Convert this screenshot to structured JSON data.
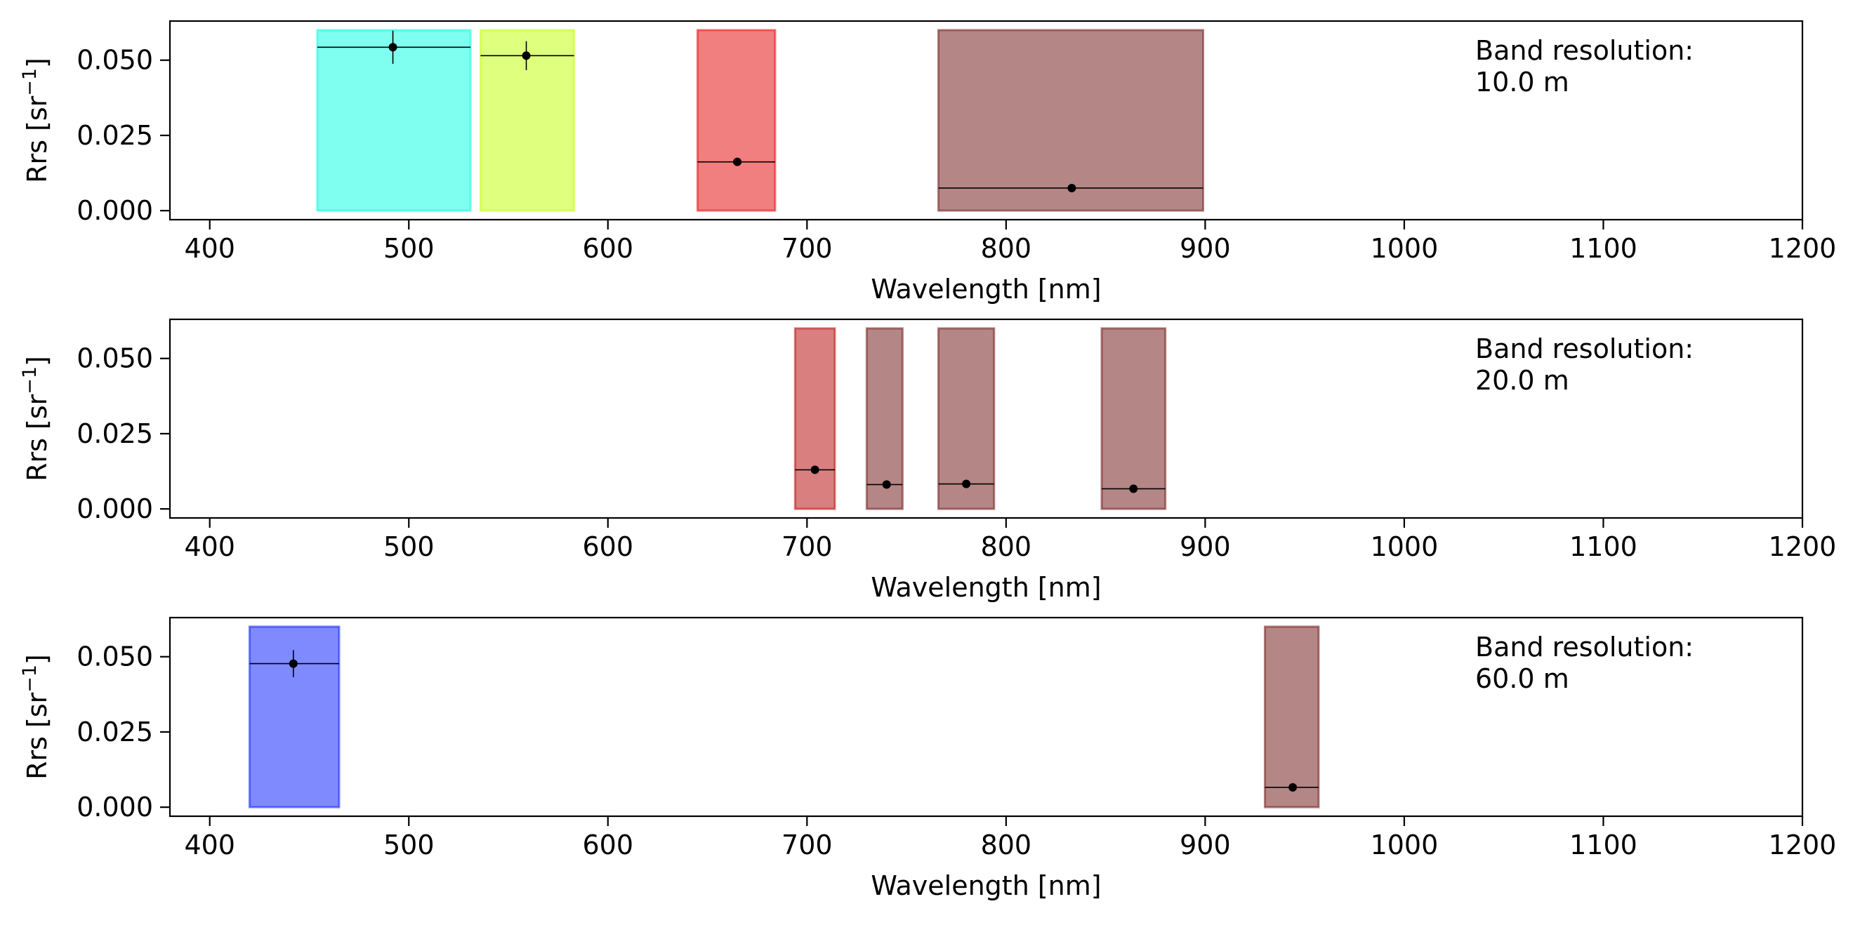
{
  "chart_data": [
    {
      "type": "bar",
      "xlabel": "Wavelength [nm]",
      "ylabel_base": "Rrs [sr",
      "ylabel_exp": "−1",
      "ylabel_close": "]",
      "xlim": [
        380,
        1200
      ],
      "ylim": [
        -0.003,
        0.063
      ],
      "xticks": [
        400,
        500,
        600,
        700,
        800,
        900,
        1000,
        1100,
        1200
      ],
      "xtick_labels": [
        "400",
        "500",
        "600",
        "700",
        "800",
        "900",
        "1000",
        "1100",
        "1200"
      ],
      "yticks": [
        0.0,
        0.025,
        0.05
      ],
      "ytick_labels": [
        "0.000",
        "0.025",
        "0.050"
      ],
      "annotation": [
        "Band resolution:",
        "10.0 m"
      ],
      "bands": [
        {
          "x0": 454,
          "x1": 531,
          "center": 492,
          "value": 0.0543,
          "yerr": 0.0055,
          "color": "#00ffe0"
        },
        {
          "x0": 536,
          "x1": 583,
          "center": 559,
          "value": 0.0515,
          "yerr": 0.0048,
          "color": "#c0ff00"
        },
        {
          "x0": 645,
          "x1": 684,
          "center": 665,
          "value": 0.0162,
          "yerr": 0.001,
          "color": "#e60000"
        },
        {
          "x0": 766,
          "x1": 899,
          "center": 833,
          "value": 0.0075,
          "yerr": 0.0008,
          "color": "#6b0d0d"
        }
      ]
    },
    {
      "type": "bar",
      "xlabel": "Wavelength [nm]",
      "ylabel_base": "Rrs [sr",
      "ylabel_exp": "−1",
      "ylabel_close": "]",
      "xlim": [
        380,
        1200
      ],
      "ylim": [
        -0.003,
        0.063
      ],
      "xticks": [
        400,
        500,
        600,
        700,
        800,
        900,
        1000,
        1100,
        1200
      ],
      "xtick_labels": [
        "400",
        "500",
        "600",
        "700",
        "800",
        "900",
        "1000",
        "1100",
        "1200"
      ],
      "yticks": [
        0.0,
        0.025,
        0.05
      ],
      "ytick_labels": [
        "0.000",
        "0.025",
        "0.050"
      ],
      "annotation": [
        "Band resolution:",
        "20.0 m"
      ],
      "bands": [
        {
          "x0": 694,
          "x1": 714,
          "center": 704,
          "value": 0.013,
          "yerr": 0.0008,
          "color": "#b30000"
        },
        {
          "x0": 730,
          "x1": 748,
          "center": 740,
          "value": 0.0081,
          "yerr": 0.0006,
          "color": "#6b0d0d"
        },
        {
          "x0": 766,
          "x1": 794,
          "center": 780,
          "value": 0.0083,
          "yerr": 0.0006,
          "color": "#6b0d0d"
        },
        {
          "x0": 848,
          "x1": 880,
          "center": 864,
          "value": 0.0067,
          "yerr": 0.0005,
          "color": "#6b0d0d"
        }
      ]
    },
    {
      "type": "bar",
      "xlabel": "Wavelength [nm]",
      "ylabel_base": "Rrs [sr",
      "ylabel_exp": "−1",
      "ylabel_close": "]",
      "xlim": [
        380,
        1200
      ],
      "ylim": [
        -0.003,
        0.063
      ],
      "xticks": [
        400,
        500,
        600,
        700,
        800,
        900,
        1000,
        1100,
        1200
      ],
      "xtick_labels": [
        "400",
        "500",
        "600",
        "700",
        "800",
        "900",
        "1000",
        "1100",
        "1200"
      ],
      "yticks": [
        0.0,
        0.025,
        0.05
      ],
      "ytick_labels": [
        "0.000",
        "0.025",
        "0.050"
      ],
      "annotation": [
        "Band resolution:",
        "60.0 m"
      ],
      "bands": [
        {
          "x0": 420,
          "x1": 465,
          "center": 442,
          "value": 0.0477,
          "yerr": 0.0045,
          "color": "#0015ff"
        },
        {
          "x0": 930,
          "x1": 957,
          "center": 944,
          "value": 0.0066,
          "yerr": 0.0005,
          "color": "#6b0d0d"
        }
      ]
    }
  ]
}
